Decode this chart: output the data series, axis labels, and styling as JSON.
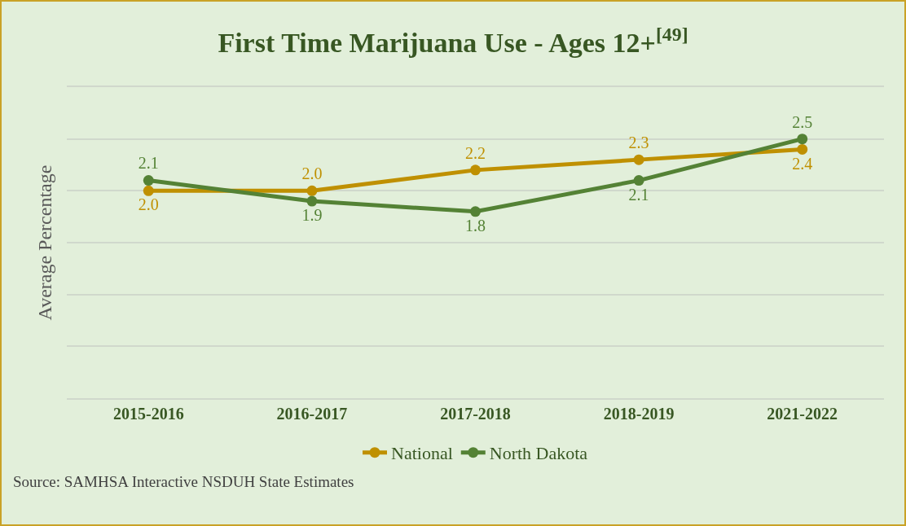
{
  "chart_data": {
    "type": "line",
    "title": "First Time Marijuana Use - Ages 12+$^{[49]}$",
    "ylabel": "Average Percentage",
    "categories": [
      "2015-2016",
      "2016-2017",
      "2017-2018",
      "2018-2019",
      "2021-2022"
    ],
    "series": [
      {
        "name": "National",
        "color": "#bf9000",
        "values": [
          2.0,
          2.0,
          2.2,
          2.3,
          2.4
        ],
        "value_labels": [
          "2.0",
          "2.0",
          "2.2",
          "2.3",
          "2.4"
        ]
      },
      {
        "name": "North Dakota",
        "color": "#548235",
        "values": [
          2.1,
          1.9,
          1.8,
          2.1,
          2.5
        ],
        "value_labels": [
          "2.1",
          "1.9",
          "1.8",
          "2.1",
          "2.5"
        ]
      }
    ],
    "ylim": [
      0,
      3
    ],
    "yticks": [
      {
        "value": 0.5,
        "label": null
      },
      {
        "value": 1,
        "label": null
      },
      {
        "value": 1.5,
        "label": null
      },
      {
        "value": 2,
        "label": null
      },
      {
        "value": 2.5,
        "label": null
      }
    ],
    "tick_labels": "x",
    "grid": "y",
    "legend": "bottom",
    "marker": "circle",
    "line_style": "solid",
    "annotations": [
      "Source: SAMHSA Interactive NSDUH State Estimates"
    ]
  }
}
